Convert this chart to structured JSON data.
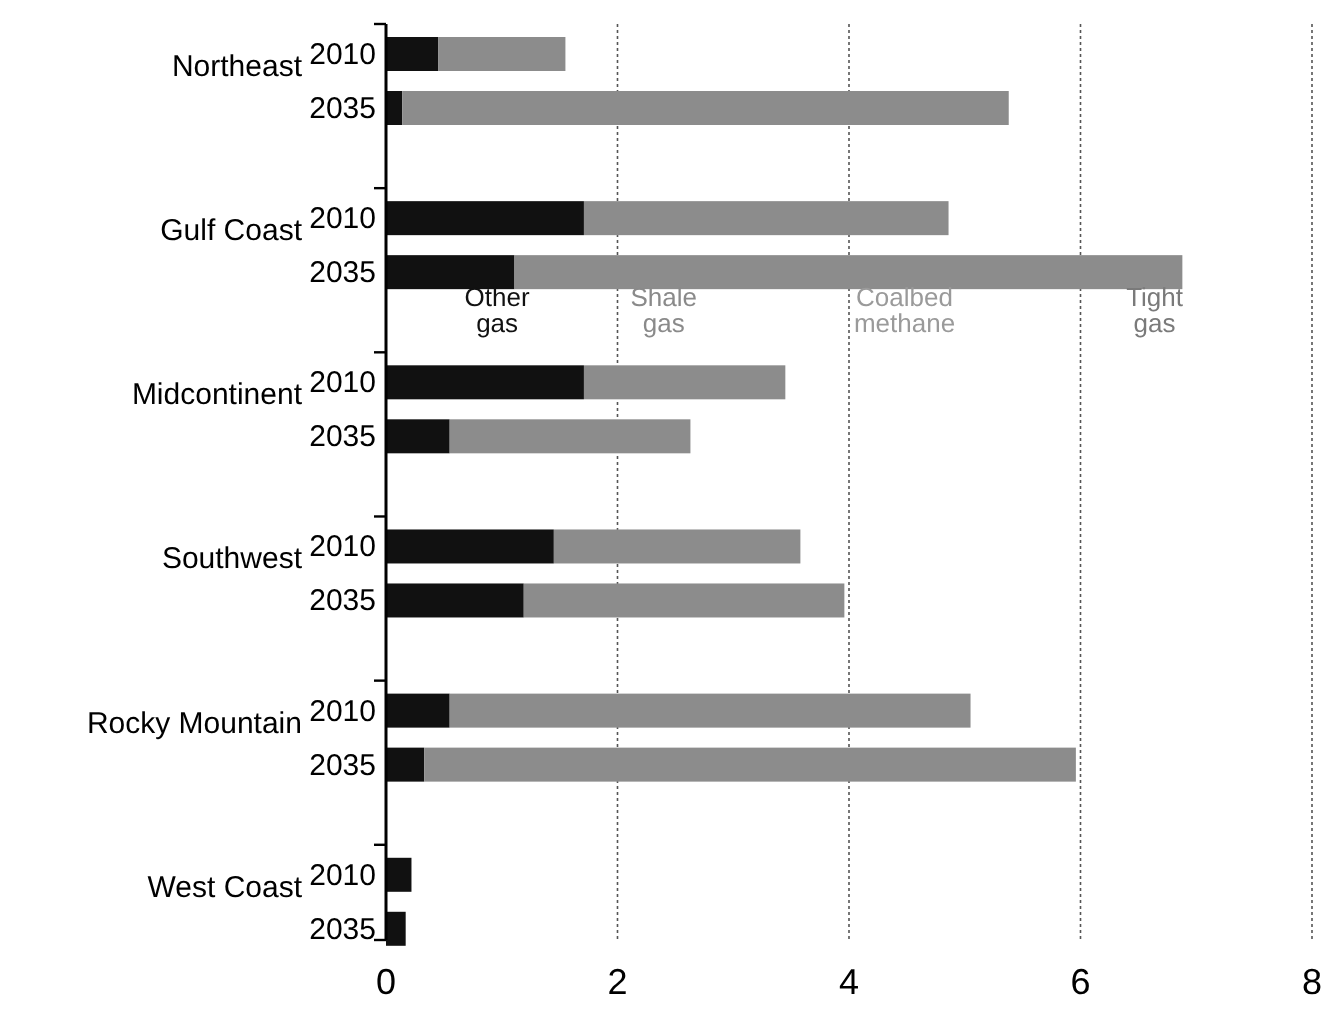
{
  "chart_data": {
    "type": "bar",
    "orientation": "horizontal",
    "stacked": true,
    "categories": [
      "2010",
      "2035",
      "2010",
      "2035",
      "2010",
      "2035",
      "2010",
      "2035",
      "2010",
      "2035",
      "2010",
      "2035"
    ],
    "series": [
      {
        "name": "Other gas",
        "color": "#111111",
        "values": [
          0.45,
          0.14,
          1.71,
          1.11,
          1.71,
          0.55,
          1.45,
          1.19,
          0.55,
          0.33,
          0.22,
          0.17
        ]
      },
      {
        "color": "#8c8c8c",
        "values": [
          1.1,
          5.24,
          3.15,
          5.77,
          1.74,
          2.08,
          2.13,
          2.77,
          4.5,
          5.63,
          0,
          0
        ]
      }
    ],
    "annotations": [
      "Northeast",
      "Gulf Coast",
      "Midcontinent",
      "Southwest",
      "Rocky Mountain",
      "West Coast",
      "Shale gas",
      "Coalbed methane",
      "Tight gas"
    ],
    "xlim": [
      0,
      8
    ],
    "xticks": [
      0,
      2,
      4,
      6,
      8
    ],
    "grid": "x"
  }
}
